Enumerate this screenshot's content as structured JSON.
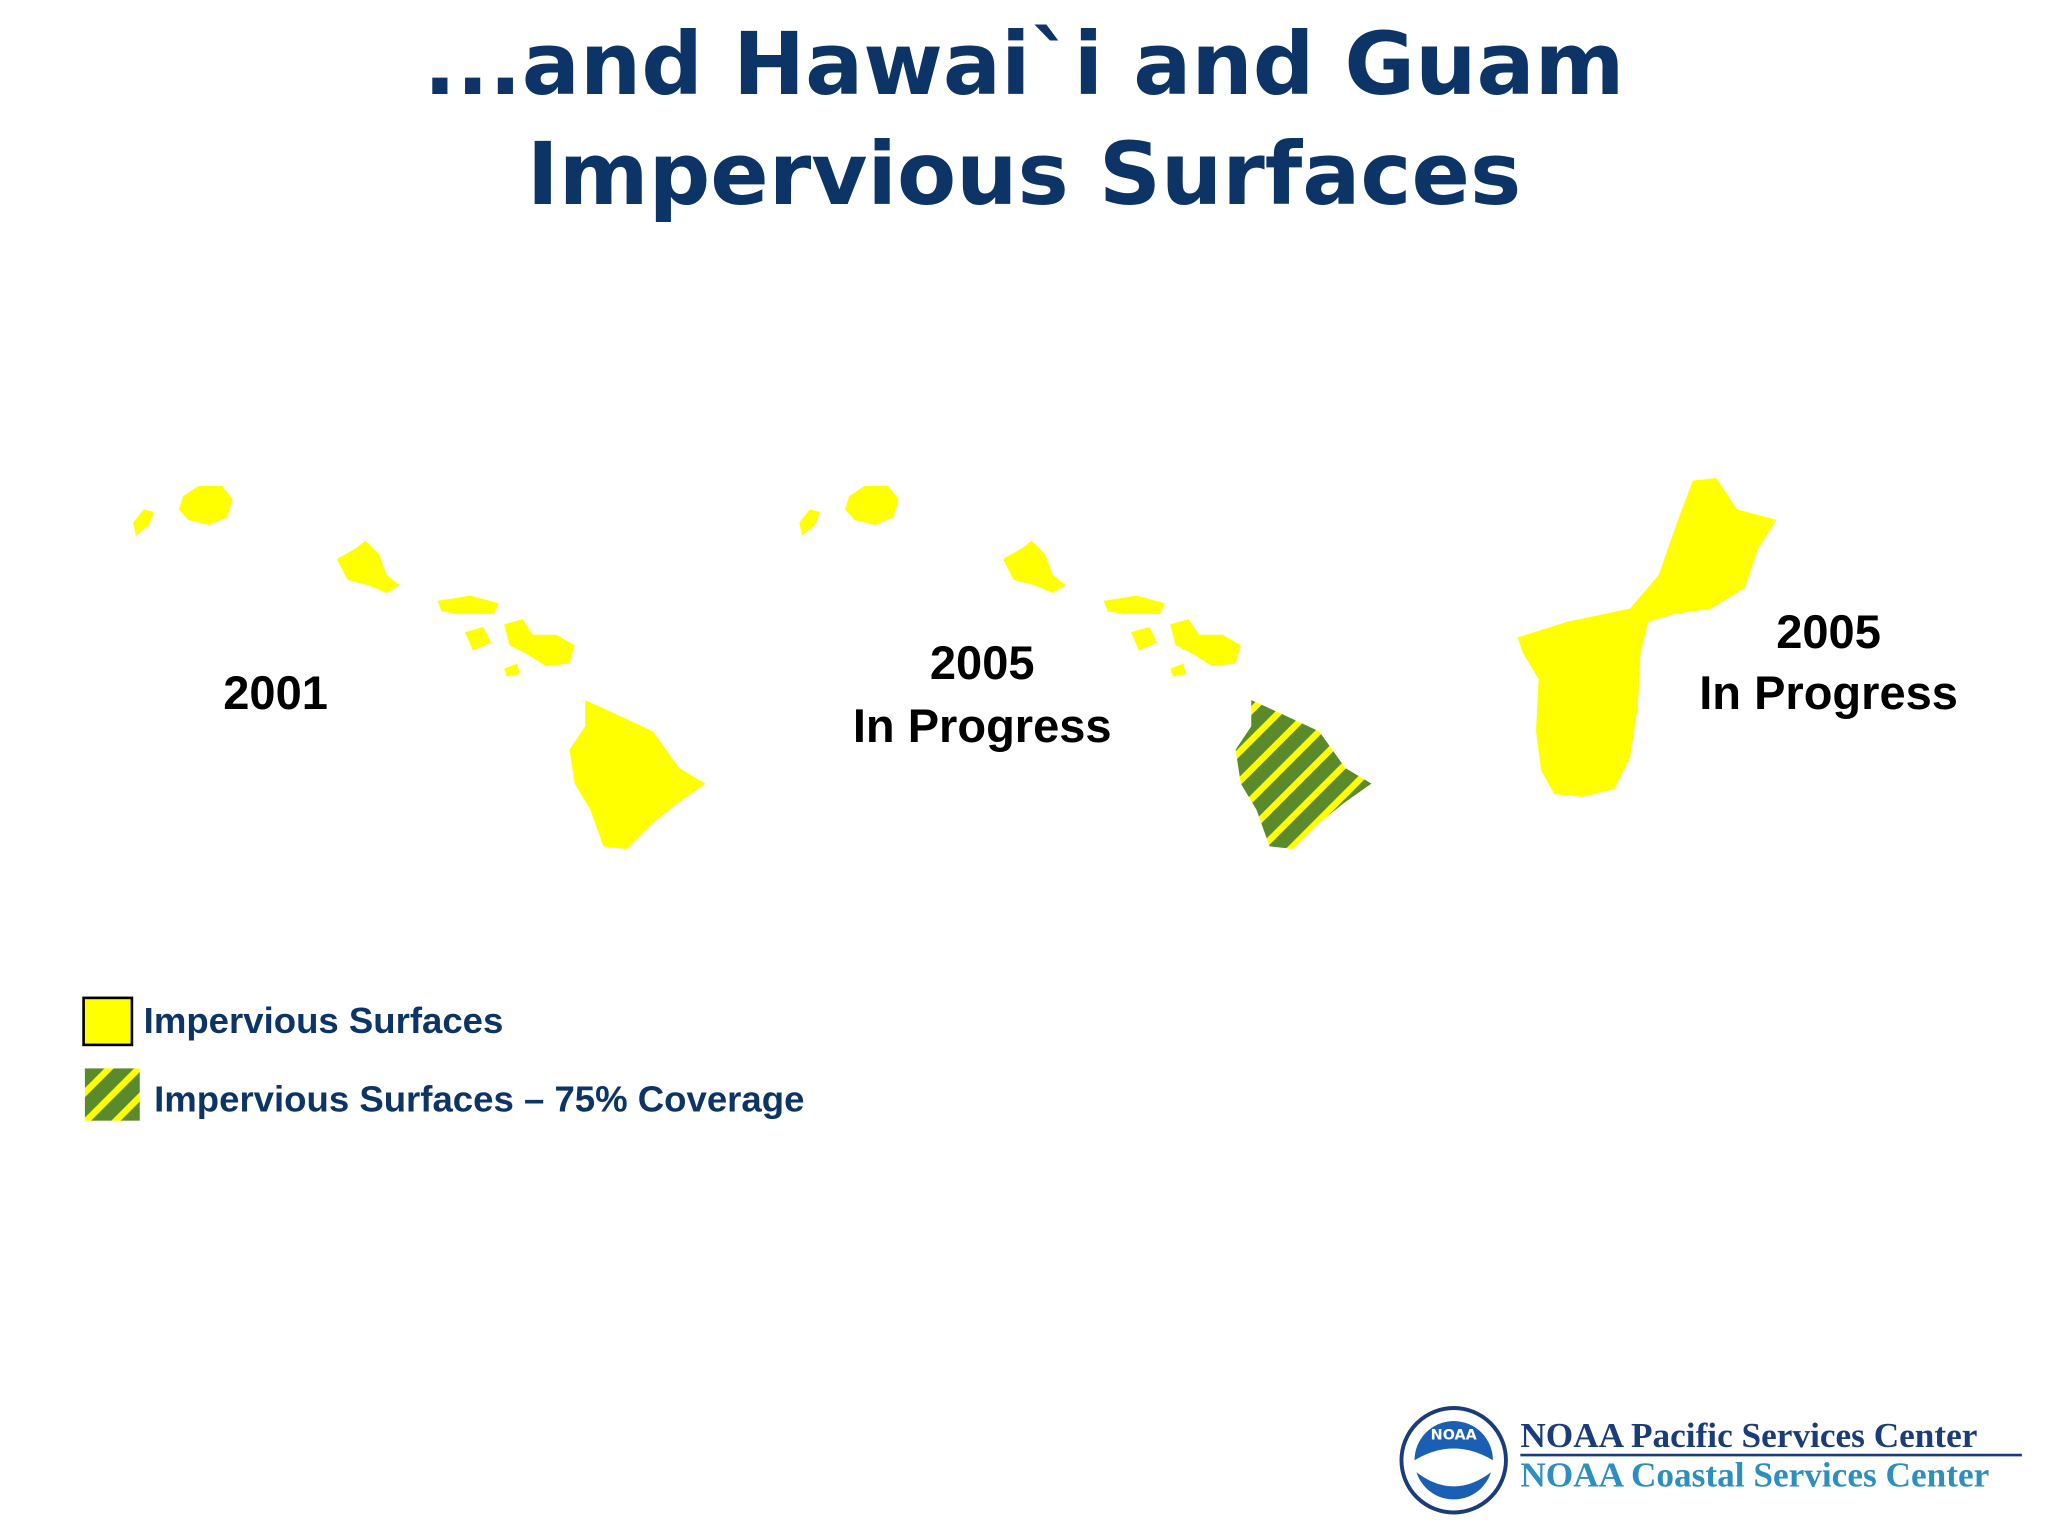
{
  "header": {
    "title": [
      "...and Hawai`i and Guam",
      "Impervious Surfaces"
    ]
  },
  "maps": [
    {
      "label": [
        "2001"
      ]
    },
    {
      "label": [
        "2005",
        "In Progress"
      ]
    },
    {
      "label": [
        "2005",
        "In Progress"
      ]
    }
  ],
  "legend": [
    {
      "label": "Impervious Surfaces"
    },
    {
      "label": "Impervious Surfaces – 75% Coverage"
    }
  ],
  "footer": {
    "logo": "NOAA",
    "lines": [
      "NOAA Pacific Services Center",
      "NOAA Coastal Services Center"
    ]
  }
}
